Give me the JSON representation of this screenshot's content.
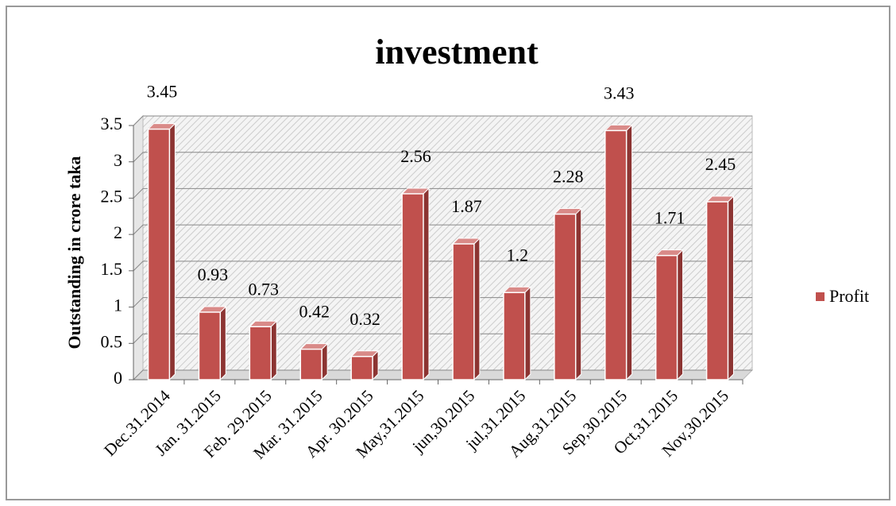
{
  "chart_data": {
    "type": "bar",
    "title": "investment",
    "y_label": "Outstanding in crore taka",
    "categories": [
      "Dec.31.2014",
      "Jan. 31.2015",
      "Feb. 29.2015",
      "Mar. 31.2015",
      "Apr. 30.2015",
      "May,31.2015",
      "jun,30.2015",
      "jul,31.2015",
      "Aug,31.2015",
      "Sep,30.2015",
      "Oct,31.2015",
      "Nov,30.2015"
    ],
    "series": [
      {
        "name": "Profit",
        "color": "#c0504d",
        "values": [
          3.45,
          0.93,
          0.73,
          0.42,
          0.32,
          2.56,
          1.87,
          1.2,
          2.28,
          3.43,
          1.71,
          2.45
        ]
      }
    ],
    "ylim": [
      0,
      3.5
    ],
    "yticks": [
      0,
      0.5,
      1,
      1.5,
      2,
      2.5,
      3,
      3.5
    ],
    "grid": true,
    "legend": "right"
  }
}
